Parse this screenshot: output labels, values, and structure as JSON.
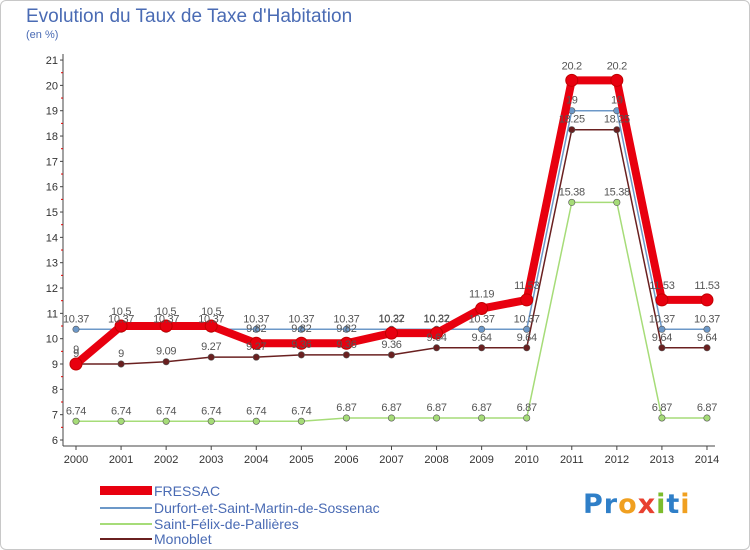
{
  "title": "Evolution du Taux de Taxe d'Habitation",
  "unit_label": "(en %)",
  "logo": {
    "letters": [
      {
        "ch": "P",
        "color": "#2f7fc8"
      },
      {
        "ch": "r",
        "color": "#2f7fc8"
      },
      {
        "ch": "o",
        "color": "#f0a020"
      },
      {
        "ch": "x",
        "color": "#e84030"
      },
      {
        "ch": "i",
        "color": "#7cbc2c"
      },
      {
        "ch": "t",
        "color": "#2f7fc8"
      },
      {
        "ch": "i",
        "color": "#f0a020"
      }
    ]
  },
  "chart_data": {
    "type": "line",
    "title": "Evolution du Taux de Taxe d'Habitation",
    "ylabel": "(en %)",
    "x": [
      "2000",
      "2001",
      "2002",
      "2003",
      "2004",
      "2005",
      "2006",
      "2007",
      "2008",
      "2009",
      "2010",
      "2011",
      "2012",
      "2013",
      "2014"
    ],
    "ylim": [
      6,
      21
    ],
    "yticks": [
      "6",
      "7",
      "8",
      "9",
      "10",
      "11",
      "12",
      "13",
      "14",
      "15",
      "16",
      "17",
      "18",
      "19",
      "20",
      "21"
    ],
    "grid": false,
    "legend_position": "bottom-left",
    "series": [
      {
        "name": "FRESSAC",
        "color": "#e8000f",
        "values": [
          9,
          10.5,
          10.5,
          10.5,
          9.82,
          9.82,
          9.82,
          10.22,
          10.22,
          11.19,
          11.53,
          20.2,
          20.2,
          11.53,
          11.53
        ],
        "labels": [
          "9",
          "10.5",
          "10.5",
          "10.5",
          "9.82",
          "9.82",
          "9.82",
          "10.22",
          "10.22",
          "11.19",
          "11.53",
          "20.2",
          "20.2",
          "11.53",
          "11.53"
        ]
      },
      {
        "name": "Durfort-et-Saint-Martin-de-Sossenac",
        "color": "#6c98c8",
        "values": [
          10.37,
          10.37,
          10.37,
          10.37,
          10.37,
          10.37,
          10.37,
          10.37,
          10.37,
          10.37,
          10.37,
          19,
          19,
          10.37,
          10.37
        ],
        "labels": [
          "10.37",
          "10.37",
          "10.37",
          "10.37",
          "10.37",
          "10.37",
          "10.37",
          "10.37",
          "10.37",
          "10.37",
          "10.37",
          "19",
          "19",
          "10.37",
          "10.37"
        ]
      },
      {
        "name": "Saint-Félix-de-Pallières",
        "color": "#a6dc78",
        "values": [
          6.74,
          6.74,
          6.74,
          6.74,
          6.74,
          6.74,
          6.87,
          6.87,
          6.87,
          6.87,
          6.87,
          15.38,
          15.38,
          6.87,
          6.87
        ],
        "labels": [
          "6.74",
          "6.74",
          "6.74",
          "6.74",
          "6.74",
          "6.74",
          "6.87",
          "6.87",
          "6.87",
          "6.87",
          "6.87",
          "15.38",
          "15.38",
          "6.87",
          "6.87"
        ]
      },
      {
        "name": "Monoblet",
        "color": "#6a2020",
        "values": [
          9,
          9,
          9.09,
          9.27,
          9.27,
          9.36,
          9.36,
          9.36,
          9.64,
          9.64,
          9.64,
          18.25,
          18.25,
          9.64,
          9.64
        ],
        "labels": [
          "9",
          "9",
          "9.09",
          "9.27",
          "9.27",
          "9.36",
          "9.36",
          "9.36",
          "9.64",
          "9.64",
          "9.64",
          "18.25",
          "18.25",
          "9.64",
          "9.64"
        ]
      }
    ]
  }
}
